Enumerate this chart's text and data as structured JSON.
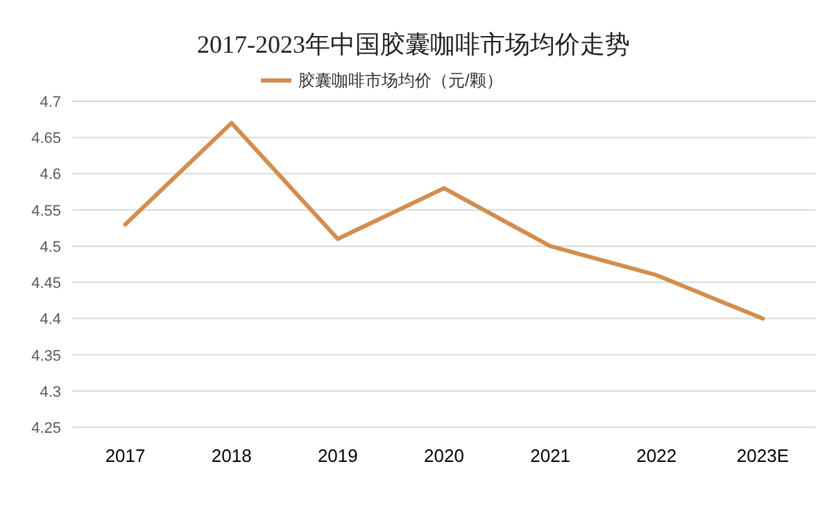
{
  "chart_data": {
    "type": "line",
    "title": "2017-2023年中国胶囊咖啡市场均价走势",
    "categories": [
      "2017",
      "2018",
      "2019",
      "2020",
      "2021",
      "2022",
      "2023E"
    ],
    "series": [
      {
        "name": "胶囊咖啡市场均价（元/颗）",
        "color": "#d38d4f",
        "values": [
          4.53,
          4.67,
          4.51,
          4.58,
          4.5,
          4.46,
          4.4
        ]
      }
    ],
    "ylim": [
      4.25,
      4.7
    ],
    "yticks": [
      4.25,
      4.3,
      4.35,
      4.4,
      4.45,
      4.5,
      4.55,
      4.6,
      4.65,
      4.7
    ],
    "grid": "y",
    "legend": "top",
    "marker": "none",
    "line_style": "solid"
  }
}
